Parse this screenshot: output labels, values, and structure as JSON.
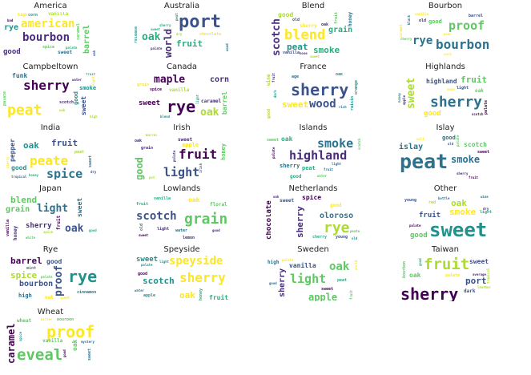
{
  "chart_data": {
    "type": "wordcloud-grid",
    "palette": [
      "#440154",
      "#472d7b",
      "#3b528b",
      "#2c728e",
      "#21918c",
      "#28ae80",
      "#5ec962",
      "#addc30",
      "#fde725"
    ],
    "clouds": [
      {
        "title": "America",
        "words": [
          [
            "bourbon",
            14
          ],
          [
            "american",
            14
          ],
          [
            "rye",
            10
          ],
          [
            "barrel",
            10
          ],
          [
            "good",
            9
          ],
          [
            "sweet",
            6
          ],
          [
            "vanilla",
            6
          ],
          [
            "spice",
            5
          ],
          [
            "caramel",
            5
          ],
          [
            "high",
            5
          ],
          [
            "corn",
            5
          ],
          [
            "oak",
            4
          ],
          [
            "palate",
            4
          ],
          [
            "bad",
            4
          ]
        ]
      },
      {
        "title": "Australia",
        "words": [
          [
            "port",
            22
          ],
          [
            "oak",
            13
          ],
          [
            "world",
            12
          ],
          [
            "fruit",
            11
          ],
          [
            "chocolate",
            5
          ],
          [
            "release",
            5
          ],
          [
            "palate",
            4
          ],
          [
            "sherry",
            4
          ],
          [
            "peat",
            4
          ],
          [
            "dry",
            4
          ],
          [
            "wood",
            4
          ],
          [
            "sweet",
            4
          ]
        ]
      },
      {
        "title": "Blend",
        "words": [
          [
            "blend",
            17
          ],
          [
            "scotch",
            13
          ],
          [
            "smoke",
            11
          ],
          [
            "peat",
            11
          ],
          [
            "grain",
            10
          ],
          [
            "good",
            8
          ],
          [
            "sherry",
            6
          ],
          [
            "honey",
            6
          ],
          [
            "fruit",
            5
          ],
          [
            "vanilla",
            5
          ],
          [
            "oak",
            5
          ],
          [
            "old",
            5
          ],
          [
            "nose",
            4
          ],
          [
            "sweet",
            4
          ]
        ]
      },
      {
        "title": "Bourbon",
        "words": [
          [
            "bourbon",
            16
          ],
          [
            "proof",
            15
          ],
          [
            "rye",
            14
          ],
          [
            "good",
            7
          ],
          [
            "barrel",
            5
          ],
          [
            "old",
            5
          ],
          [
            "black",
            4
          ],
          [
            "cherry",
            4
          ],
          [
            "corn",
            4
          ],
          [
            "caramel",
            4
          ],
          [
            "vanilla",
            4
          ],
          [
            "pour",
            4
          ]
        ]
      },
      {
        "title": "Campbeltown",
        "words": [
          [
            "peat",
            18
          ],
          [
            "sherry",
            16
          ],
          [
            "sweet",
            8
          ],
          [
            "smoke",
            7
          ],
          [
            "funk",
            8
          ],
          [
            "good",
            7
          ],
          [
            "palate",
            5
          ],
          [
            "scotch",
            5
          ],
          [
            "water",
            4
          ],
          [
            "light",
            4
          ],
          [
            "oak",
            4
          ],
          [
            "high",
            4
          ],
          [
            "fruit",
            4
          ]
        ]
      },
      {
        "title": "Canada",
        "words": [
          [
            "rye",
            20
          ],
          [
            "maple",
            13
          ],
          [
            "oak",
            13
          ],
          [
            "corn",
            10
          ],
          [
            "sweet",
            9
          ],
          [
            "barrel",
            8
          ],
          [
            "caramel",
            6
          ],
          [
            "vanilla",
            6
          ],
          [
            "grain",
            5
          ],
          [
            "spice",
            5
          ],
          [
            "blend",
            4
          ],
          [
            "light",
            4
          ]
        ]
      },
      {
        "title": "France",
        "words": [
          [
            "sherry",
            20
          ],
          [
            "wood",
            14
          ],
          [
            "sweet",
            11
          ],
          [
            "wine",
            6
          ],
          [
            "age",
            5
          ],
          [
            "orange",
            5
          ],
          [
            "raisin",
            5
          ],
          [
            "oak",
            5
          ],
          [
            "good",
            5
          ],
          [
            "dark",
            4
          ],
          [
            "fruit",
            4
          ],
          [
            "rich",
            4
          ]
        ]
      },
      {
        "title": "Highlands",
        "words": [
          [
            "sherry",
            18
          ],
          [
            "sweet",
            13
          ],
          [
            "fruit",
            11
          ],
          [
            "good",
            9
          ],
          [
            "highland",
            8
          ],
          [
            "oak",
            6
          ],
          [
            "palate",
            5
          ],
          [
            "light",
            5
          ],
          [
            "apple",
            4
          ],
          [
            "scotch",
            4
          ],
          [
            "nose",
            4
          ],
          [
            "honey",
            4
          ]
        ]
      },
      {
        "title": "India",
        "words": [
          [
            "peate",
            16
          ],
          [
            "spice",
            15
          ],
          [
            "fruit",
            11
          ],
          [
            "oak",
            11
          ],
          [
            "good",
            8
          ],
          [
            "pepper",
            8
          ],
          [
            "sweet",
            5
          ],
          [
            "peat",
            5
          ],
          [
            "tropical",
            4
          ],
          [
            "sherry",
            4
          ],
          [
            "honey",
            4
          ],
          [
            "dry",
            4
          ]
        ]
      },
      {
        "title": "Irish",
        "words": [
          [
            "fruit",
            16
          ],
          [
            "light",
            15
          ],
          [
            "good",
            12
          ],
          [
            "apple",
            7
          ],
          [
            "honey",
            7
          ],
          [
            "sweet",
            6
          ],
          [
            "grain",
            5
          ],
          [
            "oak",
            5
          ],
          [
            "palate",
            4
          ],
          [
            "barrel",
            4
          ],
          [
            "pot",
            4
          ],
          [
            "irish",
            4
          ]
        ]
      },
      {
        "title": "Islands",
        "words": [
          [
            "highland",
            15
          ],
          [
            "smoke",
            15
          ],
          [
            "oak",
            8
          ],
          [
            "peat",
            7
          ],
          [
            "sherry",
            7
          ],
          [
            "good",
            6
          ],
          [
            "sweet",
            5
          ],
          [
            "palate",
            4
          ],
          [
            "water",
            4
          ],
          [
            "light",
            4
          ],
          [
            "fruit",
            4
          ],
          [
            "scotch",
            4
          ]
        ]
      },
      {
        "title": "Islay",
        "words": [
          [
            "peat",
            25
          ],
          [
            "smoke",
            12
          ],
          [
            "islay",
            10
          ],
          [
            "scotch",
            8
          ],
          [
            "good",
            7
          ],
          [
            "sweet",
            5
          ],
          [
            "salt",
            4
          ],
          [
            "palate",
            4
          ],
          [
            "old",
            4
          ],
          [
            "fruit",
            4
          ],
          [
            "sherry",
            4
          ]
        ]
      },
      {
        "title": "Japan",
        "words": [
          [
            "oak",
            13
          ],
          [
            "light",
            13
          ],
          [
            "blend",
            11
          ],
          [
            "grain",
            10
          ],
          [
            "sherry",
            9
          ],
          [
            "sweet",
            8
          ],
          [
            "honey",
            6
          ],
          [
            "fruit",
            6
          ],
          [
            "vanilla",
            5
          ],
          [
            "spice",
            4
          ],
          [
            "white",
            4
          ],
          [
            "good",
            4
          ]
        ]
      },
      {
        "title": "Lowlands",
        "words": [
          [
            "grain",
            18
          ],
          [
            "scotch",
            14
          ],
          [
            "oak",
            8
          ],
          [
            "floral",
            6
          ],
          [
            "lemon",
            5
          ],
          [
            "water",
            5
          ],
          [
            "fruit",
            5
          ],
          [
            "light",
            5
          ],
          [
            "old",
            5
          ],
          [
            "vanilla",
            5
          ],
          [
            "sweet",
            4
          ],
          [
            "good",
            4
          ]
        ]
      },
      {
        "title": "Netherlands",
        "words": [
          [
            "rye",
            18
          ],
          [
            "oloroso",
            10
          ],
          [
            "chocolate",
            9
          ],
          [
            "sherry",
            11
          ],
          [
            "spice",
            8
          ],
          [
            "good",
            6
          ],
          [
            "sweet",
            6
          ],
          [
            "cherry",
            5
          ],
          [
            "young",
            5
          ],
          [
            "peate",
            4
          ],
          [
            "oak",
            4
          ],
          [
            "old",
            4
          ]
        ]
      },
      {
        "title": "Other",
        "words": [
          [
            "sweet",
            24
          ],
          [
            "smoke",
            11
          ],
          [
            "oak",
            11
          ],
          [
            "fruit",
            9
          ],
          [
            "good",
            9
          ],
          [
            "young",
            5
          ],
          [
            "red",
            5
          ],
          [
            "light",
            5
          ],
          [
            "dry",
            4
          ],
          [
            "palate",
            4
          ],
          [
            "wine",
            4
          ],
          [
            "bottle",
            4
          ]
        ]
      },
      {
        "title": "Rye",
        "words": [
          [
            "rye",
            20
          ],
          [
            "proof",
            13
          ],
          [
            "barrel",
            11
          ],
          [
            "spice",
            11
          ],
          [
            "bourbon",
            10
          ],
          [
            "good",
            8
          ],
          [
            "high",
            7
          ],
          [
            "oak",
            6
          ],
          [
            "mint",
            5
          ],
          [
            "cinnamon",
            5
          ],
          [
            "palate",
            4
          ],
          [
            "sweet",
            4
          ]
        ]
      },
      {
        "title": "Speyside",
        "words": [
          [
            "sherry",
            16
          ],
          [
            "speyside",
            14
          ],
          [
            "scotch",
            11
          ],
          [
            "oak",
            11
          ],
          [
            "sweet",
            9
          ],
          [
            "fruit",
            8
          ],
          [
            "good",
            5
          ],
          [
            "apple",
            5
          ],
          [
            "honey",
            5
          ],
          [
            "water",
            4
          ],
          [
            "palate",
            4
          ],
          [
            "light",
            4
          ]
        ]
      },
      {
        "title": "Sweden",
        "words": [
          [
            "light",
            15
          ],
          [
            "oak",
            14
          ],
          [
            "apple",
            12
          ],
          [
            "sherry",
            10
          ],
          [
            "vanilla",
            8
          ],
          [
            "high",
            6
          ],
          [
            "sweet",
            5
          ],
          [
            "peat",
            5
          ],
          [
            "good",
            4
          ],
          [
            "world",
            4
          ],
          [
            "palate",
            4
          ],
          [
            "fruit",
            4
          ]
        ]
      },
      {
        "title": "Taiwan",
        "words": [
          [
            "sherry",
            20
          ],
          [
            "fruit",
            19
          ],
          [
            "port",
            11
          ],
          [
            "sweet",
            8
          ],
          [
            "oak",
            8
          ],
          [
            "dark",
            6
          ],
          [
            "bourbon",
            5
          ],
          [
            "palate",
            5
          ],
          [
            "tropical",
            4
          ],
          [
            "leather",
            4
          ],
          [
            "good",
            4
          ],
          [
            "average",
            4
          ]
        ]
      },
      {
        "title": "Wheat",
        "words": [
          [
            "proof",
            20
          ],
          [
            "eveal",
            19
          ],
          [
            "caramel",
            12
          ],
          [
            "oak",
            8
          ],
          [
            "vanilla",
            6
          ],
          [
            "wheat",
            6
          ],
          [
            "bourbon",
            5
          ],
          [
            "sweet",
            5
          ],
          [
            "good",
            4
          ],
          [
            "spice",
            4
          ],
          [
            "mystery",
            4
          ],
          [
            "bitter",
            4
          ]
        ]
      }
    ]
  }
}
